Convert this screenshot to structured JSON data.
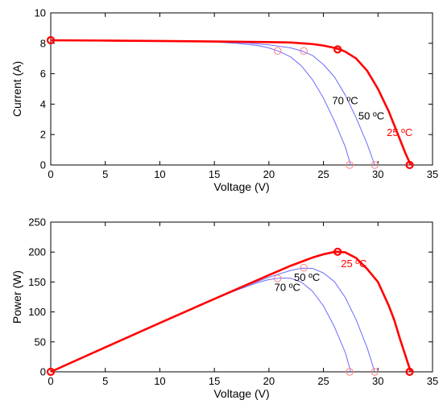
{
  "chart_data": [
    {
      "type": "line",
      "xlabel": "Voltage (V)",
      "ylabel": "Current (A)",
      "xlim": [
        0,
        35
      ],
      "ylim": [
        0,
        10
      ],
      "xticks": [
        "0",
        "5",
        "10",
        "15",
        "20",
        "25",
        "30",
        "35"
      ],
      "yticks": [
        "0",
        "2",
        "4",
        "6",
        "8",
        "10"
      ],
      "grid": false,
      "series": [
        {
          "color": "#ff0000",
          "thick": true,
          "label": "25 ºC",
          "x": [
            0,
            5,
            10,
            15,
            20,
            22,
            24,
            25,
            26,
            26.5,
            27,
            28,
            29,
            30,
            31,
            31.5,
            32,
            32.5,
            33
          ],
          "y": [
            8.2,
            8.18,
            8.15,
            8.12,
            8.08,
            8.05,
            7.95,
            7.85,
            7.7,
            7.6,
            7.45,
            7.0,
            6.2,
            5.0,
            3.5,
            2.6,
            1.7,
            0.8,
            0.0
          ],
          "markers": [
            {
              "x": 0,
              "y": 8.2
            },
            {
              "x": 26.3,
              "y": 7.6
            },
            {
              "x": 32.9,
              "y": 0
            }
          ]
        },
        {
          "color": "#6a6aff",
          "thick": false,
          "label": "50 ºC",
          "x": [
            0,
            5,
            10,
            15,
            18,
            20,
            22,
            23,
            24,
            25,
            26,
            27,
            28,
            29,
            29.7
          ],
          "y": [
            8.2,
            8.18,
            8.15,
            8.1,
            8.02,
            7.9,
            7.7,
            7.5,
            7.2,
            6.6,
            5.8,
            4.6,
            3.1,
            1.4,
            0.0
          ],
          "markers": [
            {
              "x": 23.2,
              "y": 7.5
            },
            {
              "x": 29.7,
              "y": 0
            }
          ]
        },
        {
          "color": "#6a6aff",
          "thick": false,
          "label": "70 ºC",
          "x": [
            0,
            5,
            10,
            15,
            17,
            19,
            20,
            21,
            22,
            23,
            24,
            25,
            26,
            27,
            27.5
          ],
          "y": [
            8.2,
            8.18,
            8.14,
            8.08,
            8.0,
            7.85,
            7.7,
            7.45,
            7.1,
            6.5,
            5.6,
            4.4,
            2.9,
            1.2,
            0.0
          ],
          "markers": [
            {
              "x": 20.8,
              "y": 7.5
            },
            {
              "x": 27.4,
              "y": 0
            }
          ]
        }
      ],
      "annotations": [
        {
          "text": "70 ºC",
          "x": 25.8,
          "y": 4.0,
          "color": "#000000"
        },
        {
          "text": "50 ºC",
          "x": 28.2,
          "y": 3.0,
          "color": "#000000"
        },
        {
          "text": "25 ºC",
          "x": 30.8,
          "y": 1.9,
          "color": "#ff0000"
        }
      ]
    },
    {
      "type": "line",
      "xlabel": "Voltage (V)",
      "ylabel": "Power (W)",
      "xlim": [
        0,
        35
      ],
      "ylim": [
        0,
        250
      ],
      "xticks": [
        "0",
        "5",
        "10",
        "15",
        "20",
        "25",
        "30",
        "35"
      ],
      "yticks": [
        "0",
        "50",
        "100",
        "150",
        "200",
        "250"
      ],
      "grid": false,
      "series": [
        {
          "color": "#ff0000",
          "thick": true,
          "label": "25 ºC",
          "x": [
            0,
            5,
            10,
            15,
            20,
            22,
            24,
            25,
            26,
            26.3,
            27,
            28,
            29,
            30,
            31,
            31.5,
            32,
            32.5,
            33
          ],
          "y": [
            0,
            40.9,
            81.5,
            121.8,
            161.6,
            177.1,
            190.8,
            196.3,
            200.2,
            200.5,
            199.5,
            190,
            172,
            150,
            110,
            86,
            56,
            28,
            0
          ],
          "markers": [
            {
              "x": 0,
              "y": 0
            },
            {
              "x": 26.3,
              "y": 200.5
            },
            {
              "x": 32.9,
              "y": 0
            }
          ]
        },
        {
          "color": "#6a6aff",
          "thick": false,
          "label": "50 ºC",
          "x": [
            0,
            5,
            10,
            15,
            18,
            20,
            22,
            23,
            24,
            25,
            26,
            27,
            28,
            29,
            29.7
          ],
          "y": [
            0,
            40.9,
            81.5,
            121.5,
            144.4,
            158,
            169.4,
            173,
            172.8,
            165,
            150.8,
            124.2,
            86.8,
            40.6,
            0
          ],
          "markers": [
            {
              "x": 23.2,
              "y": 174
            },
            {
              "x": 29.7,
              "y": 0
            }
          ]
        },
        {
          "color": "#6a6aff",
          "thick": false,
          "label": "70 ºC",
          "x": [
            0,
            5,
            10,
            15,
            17,
            19,
            20,
            21,
            22,
            23,
            24,
            25,
            26,
            27,
            27.5
          ],
          "y": [
            0,
            40.9,
            81.4,
            121.2,
            136,
            149.2,
            154,
            156.5,
            156.2,
            149.5,
            134.4,
            110,
            75.4,
            32.4,
            0
          ],
          "markers": [
            {
              "x": 20.8,
              "y": 156
            },
            {
              "x": 27.4,
              "y": 0
            }
          ]
        }
      ],
      "annotations": [
        {
          "text": "25 ºC",
          "x": 26.6,
          "y": 175,
          "color": "#ff0000"
        },
        {
          "text": "50 ºC",
          "x": 22.3,
          "y": 152,
          "color": "#000000"
        },
        {
          "text": "70 ºC",
          "x": 20.5,
          "y": 135,
          "color": "#000000"
        }
      ]
    }
  ]
}
